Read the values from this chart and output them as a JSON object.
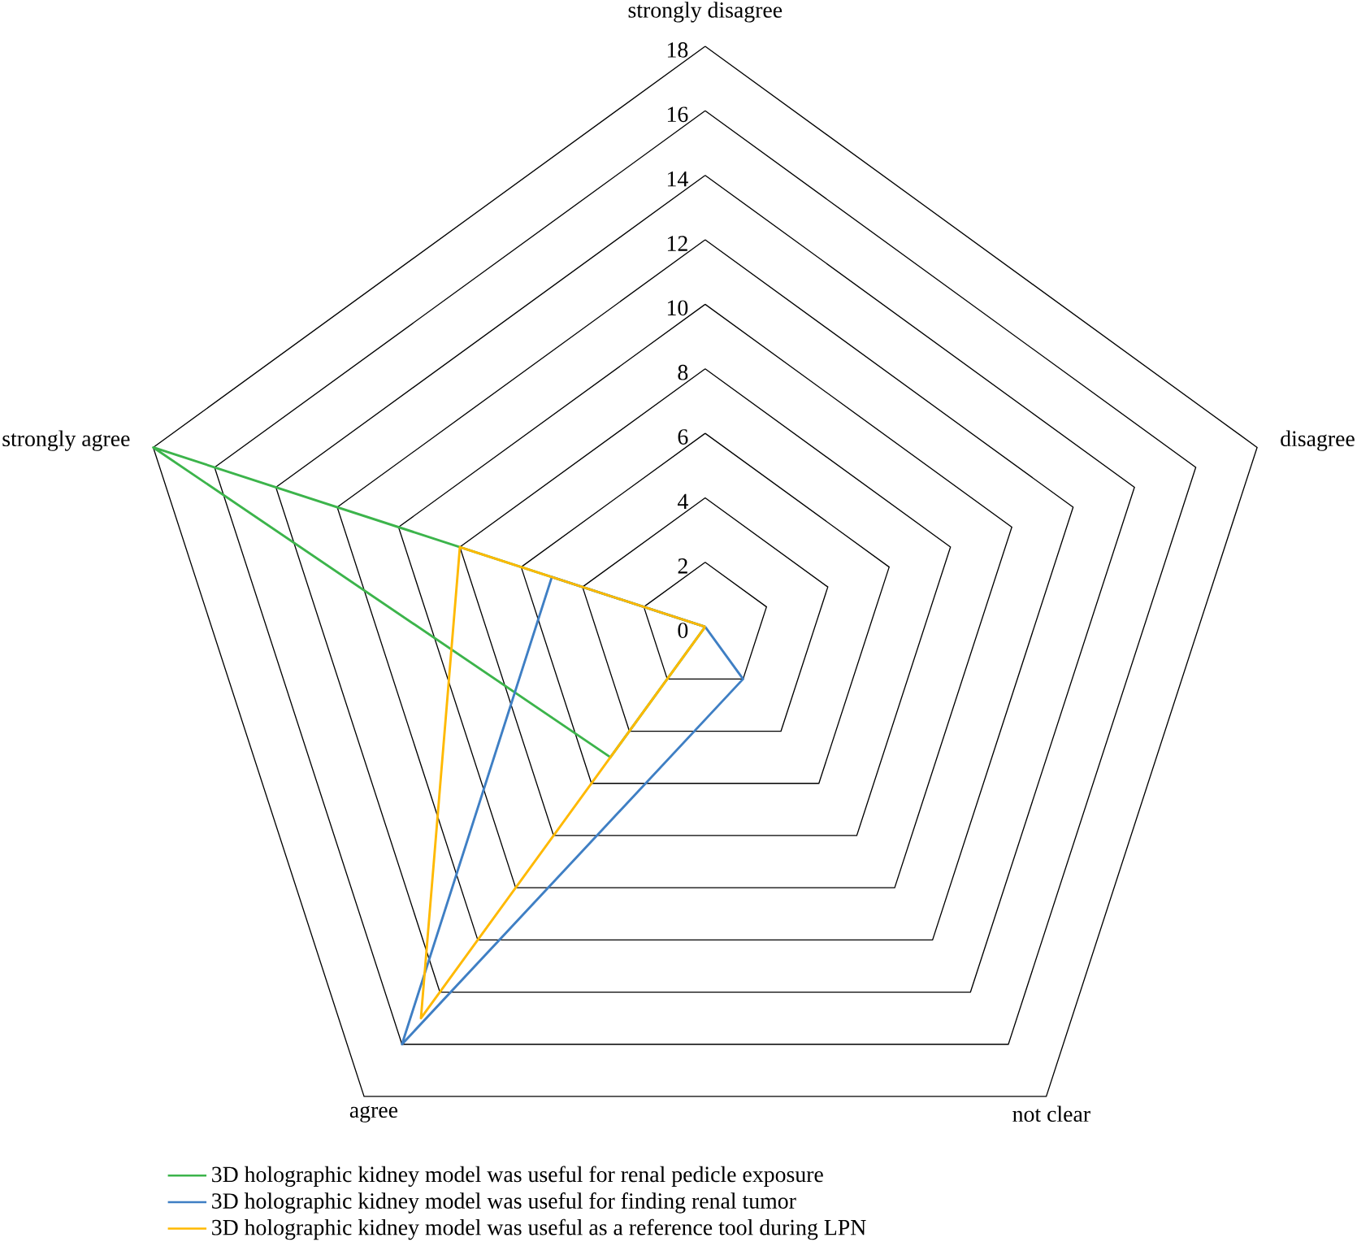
{
  "chart_data": {
    "type": "radar",
    "categories": [
      "strongly disagree",
      "disagree",
      "not clear",
      "agree",
      "strongly agree"
    ],
    "series": [
      {
        "name": "3D holographic kidney model was useful for renal pedicle exposure",
        "color": "#3cb44b",
        "values": [
          0,
          0,
          0,
          5,
          18
        ]
      },
      {
        "name": "3D holographic kidney model was useful for finding renal tumor",
        "color": "#3f7fc4",
        "values": [
          0,
          0,
          2,
          16,
          5
        ]
      },
      {
        "name": "3D holographic kidney model was useful as a reference tool during LPN",
        "color": "#ffb900",
        "values": [
          0,
          0,
          0,
          15,
          8
        ]
      }
    ],
    "ylim": [
      0,
      18
    ],
    "yticks": [
      0,
      2,
      4,
      6,
      8,
      10,
      12,
      14,
      16,
      18
    ],
    "legend": "bottom"
  }
}
